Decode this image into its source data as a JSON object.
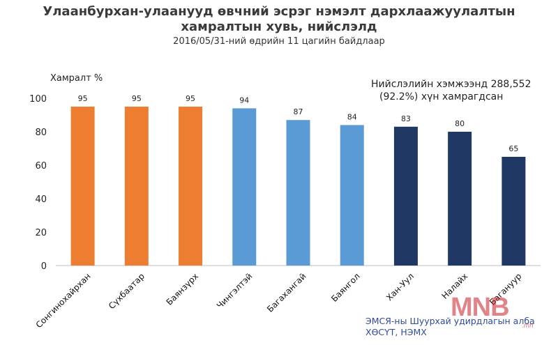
{
  "header": {
    "title_line1": "Улаанбурхан-улаанууд  өвчний эсрэг нэмэлт дархлаажуулалтын",
    "title_line2": "хамралтын хувь, нийслэлд",
    "subtitle": "2016/05/31-ний өдрийн 11 цагийн байдлаар"
  },
  "annotation": {
    "line1": "Нийслэлийн хэмжээнд 288,552",
    "line2": "(92.2%) хүн хамрагдсан"
  },
  "source": {
    "line1": "ЭМСЯ-ны Шуурхай удирдлагын алба",
    "line2": "ХӨСҮТ, НЭМХ"
  },
  "logo": {
    "text": "MNB",
    "sub": ".mn"
  },
  "colors": {
    "orange": "#ED7D31",
    "light_blue": "#5B9BD5",
    "navy": "#1F3864",
    "axis": "#BFBFBF"
  },
  "chart_data": {
    "type": "bar",
    "ylabel": "Хамралт %",
    "ylim": [
      0,
      100
    ],
    "yticks": [
      0,
      20,
      40,
      60,
      80,
      100
    ],
    "categories": [
      "Сонгинохайрхан",
      "Сүхбаатар",
      "Баянзүрх",
      "Чингэлтэй",
      "Багахангай",
      "Баянгол",
      "Хан-Уул",
      "Налайх",
      "Багануур"
    ],
    "values": [
      95,
      95,
      95,
      94,
      87,
      84,
      83,
      80,
      65
    ],
    "bar_colors": [
      "orange",
      "orange",
      "orange",
      "light_blue",
      "light_blue",
      "light_blue",
      "navy",
      "navy",
      "navy"
    ],
    "data_labels": [
      "95",
      "95",
      "95",
      "94",
      "87",
      "84",
      "83",
      "80",
      "65"
    ],
    "grid": false,
    "legend": "none"
  }
}
